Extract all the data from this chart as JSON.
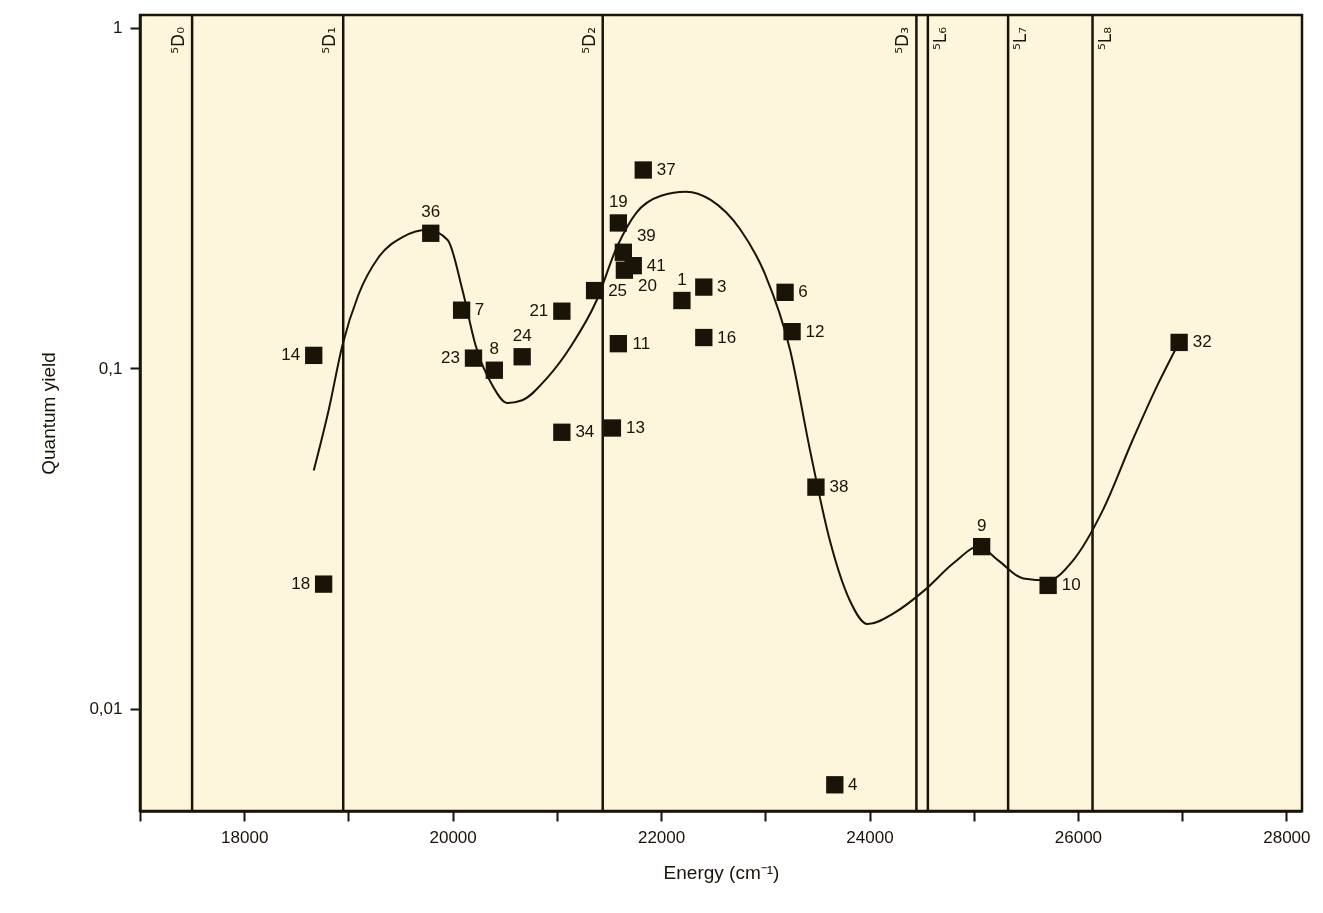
{
  "chart_data": {
    "type": "scatter",
    "xlabel": "Energy (cm⁻¹)",
    "ylabel": "Quantum yield",
    "xlim": [
      17000,
      28150
    ],
    "ylim": [
      0.005,
      1.09
    ],
    "log": "y",
    "grid": false,
    "xticks": [
      {
        "value": 17000,
        "label": null
      },
      18000,
      {
        "value": 19000,
        "label": null
      },
      20000,
      {
        "value": 21000,
        "label": null
      },
      22000,
      {
        "value": 23000,
        "label": null
      },
      24000,
      {
        "value": 25000,
        "label": null
      },
      26000,
      {
        "value": 27000,
        "label": null
      },
      28000
    ],
    "yticks": [
      {
        "value": 0.01,
        "label": "0,01"
      },
      {
        "value": 0.1,
        "label": "0,1"
      },
      1
    ],
    "series": [
      {
        "marker": "square",
        "color": "#1a1408",
        "x": [
          18667,
          18762,
          19790,
          20086,
          20200,
          20400,
          20667,
          21048,
          21048,
          21362,
          21590,
          21638,
          21733,
          21648,
          21590,
          21533,
          21829,
          22200,
          22410,
          22410,
          23190,
          23257,
          23486,
          23667,
          25076,
          25714,
          26971
        ],
        "values": [
          0.109,
          0.0232,
          0.249,
          0.148,
          0.107,
          0.0986,
          0.108,
          0.147,
          0.0648,
          0.169,
          0.267,
          0.219,
          0.2,
          0.194,
          0.118,
          0.0667,
          0.382,
          0.158,
          0.173,
          0.123,
          0.167,
          0.128,
          0.0447,
          0.00597,
          0.0299,
          0.023,
          0.119
        ]
      },
      {
        "type": "line",
        "marker": "none",
        "line_style": "solid",
        "color": "#1a1408",
        "x": [
          18667,
          18810,
          18943,
          19095,
          19286,
          19524,
          19762,
          19952,
          20095,
          20219,
          20381,
          20524,
          20667,
          20905,
          21143,
          21381,
          21571,
          21762,
          22000,
          22238,
          22476,
          22762,
          23000,
          23238,
          23429,
          23619,
          23810,
          23981,
          24238,
          24524,
          24810,
          25048,
          25238,
          25476,
          25714,
          25952,
          26238,
          26524,
          26762,
          26971
        ],
        "values": [
          0.05,
          0.0752,
          0.117,
          0.164,
          0.211,
          0.243,
          0.255,
          0.238,
          0.169,
          0.117,
          0.089,
          0.079,
          0.0805,
          0.0935,
          0.117,
          0.158,
          0.225,
          0.286,
          0.321,
          0.33,
          0.312,
          0.255,
          0.188,
          0.113,
          0.0574,
          0.0312,
          0.0208,
          0.0177,
          0.0191,
          0.0222,
          0.0268,
          0.0299,
          0.0272,
          0.0241,
          0.0238,
          0.0272,
          0.0382,
          0.0614,
          0.089,
          0.119
        ]
      }
    ],
    "ref_lines": [
      {
        "axis": "x",
        "value": 17500,
        "label": "⁵D₀",
        "color": "#1a1408"
      },
      {
        "axis": "x",
        "value": 18950,
        "label": "⁵D₁",
        "color": "#1a1408"
      },
      {
        "axis": "x",
        "value": 21440,
        "label": "⁵D₂",
        "color": "#1a1408"
      },
      {
        "axis": "x",
        "value": 24450,
        "label": "⁵D₃",
        "color": "#1a1408"
      },
      {
        "axis": "x",
        "value": 24560,
        "label": "⁵L₆",
        "color": "#1a1408"
      },
      {
        "axis": "x",
        "value": 25330,
        "label": "⁵L₇",
        "color": "#1a1408"
      },
      {
        "axis": "x",
        "value": 26140,
        "label": "⁵L₈",
        "color": "#1a1408"
      }
    ],
    "annotations": [
      {
        "text": "14",
        "x": 18667,
        "y": 0.109
      },
      {
        "text": "18",
        "x": 18762,
        "y": 0.0232
      },
      {
        "text": "36",
        "x": 19790,
        "y": 0.249
      },
      {
        "text": "7",
        "x": 20086,
        "y": 0.148
      },
      {
        "text": "23",
        "x": 20200,
        "y": 0.107
      },
      {
        "text": "8",
        "x": 20400,
        "y": 0.0986
      },
      {
        "text": "24",
        "x": 20667,
        "y": 0.108
      },
      {
        "text": "21",
        "x": 21048,
        "y": 0.147
      },
      {
        "text": "34",
        "x": 21048,
        "y": 0.0648
      },
      {
        "text": "25",
        "x": 21362,
        "y": 0.169
      },
      {
        "text": "19",
        "x": 21590,
        "y": 0.267
      },
      {
        "text": "39",
        "x": 21638,
        "y": 0.219
      },
      {
        "text": "41",
        "x": 21733,
        "y": 0.2
      },
      {
        "text": "20",
        "x": 21648,
        "y": 0.194
      },
      {
        "text": "11",
        "x": 21590,
        "y": 0.118
      },
      {
        "text": "13",
        "x": 21533,
        "y": 0.0667
      },
      {
        "text": "37",
        "x": 21829,
        "y": 0.382
      },
      {
        "text": "1",
        "x": 22200,
        "y": 0.158
      },
      {
        "text": "3",
        "x": 22410,
        "y": 0.173
      },
      {
        "text": "16",
        "x": 22410,
        "y": 0.123
      },
      {
        "text": "6",
        "x": 23190,
        "y": 0.167
      },
      {
        "text": "12",
        "x": 23257,
        "y": 0.128
      },
      {
        "text": "38",
        "x": 23486,
        "y": 0.0447
      },
      {
        "text": "4",
        "x": 23667,
        "y": 0.00597
      },
      {
        "text": "9",
        "x": 25076,
        "y": 0.0299
      },
      {
        "text": "10",
        "x": 25714,
        "y": 0.023
      },
      {
        "text": "32",
        "x": 26971,
        "y": 0.119
      }
    ]
  }
}
